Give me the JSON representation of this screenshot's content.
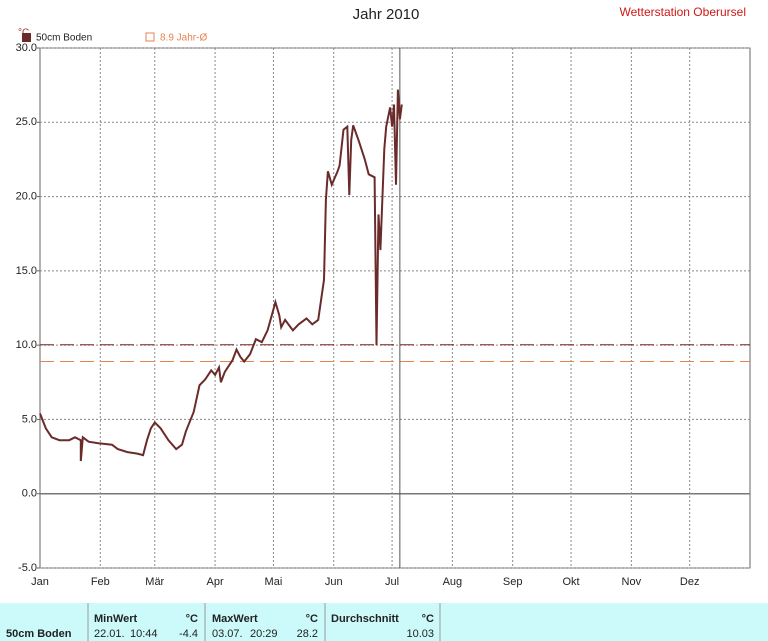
{
  "chart_data": {
    "type": "line",
    "title": "Jahr 2010",
    "subtitle": "Wetterstation Oberursel",
    "y_label": "°C",
    "x": [
      0,
      3,
      6,
      10,
      15,
      18,
      21,
      21,
      22,
      25,
      30,
      37,
      40,
      45,
      50,
      53,
      55,
      57,
      59,
      62,
      66,
      70,
      73,
      75,
      79,
      82,
      85,
      88,
      90,
      92,
      93,
      95,
      99,
      101,
      103,
      105,
      108,
      111,
      114,
      117,
      120,
      121,
      123,
      124,
      126,
      130,
      133,
      137,
      140,
      143,
      146,
      147,
      148,
      150,
      153,
      154,
      156,
      158,
      159,
      160,
      161,
      164,
      167,
      169,
      172,
      173,
      174,
      175,
      177,
      178,
      180,
      181,
      182,
      183,
      184,
      185,
      186
    ],
    "series": [
      {
        "name": "50cm Boden",
        "color": "#6b2b2b",
        "values": [
          5.4,
          4.4,
          3.8,
          3.6,
          3.6,
          3.8,
          3.6,
          2.2,
          3.8,
          3.5,
          3.4,
          3.3,
          3.0,
          2.8,
          2.7,
          2.6,
          3.6,
          4.4,
          4.8,
          4.4,
          3.6,
          3.0,
          3.3,
          4.2,
          5.5,
          7.3,
          7.7,
          8.3,
          8.0,
          8.5,
          7.5,
          8.2,
          9.0,
          9.7,
          9.2,
          8.9,
          9.4,
          10.4,
          10.2,
          11.0,
          12.4,
          12.9,
          12.0,
          11.2,
          11.7,
          11.0,
          11.4,
          11.8,
          11.4,
          11.7,
          14.4,
          19.8,
          21.7,
          20.8,
          21.7,
          22.1,
          24.5,
          24.7,
          20.1,
          23.8,
          24.8,
          23.7,
          22.5,
          21.5,
          21.3,
          10.0,
          18.8,
          16.4,
          23.2,
          24.7,
          26.0,
          24.7,
          26.2,
          20.8,
          27.2,
          25.2,
          26.2
        ]
      }
    ],
    "ref_lines": [
      {
        "name": "8.9 Jahr-Ø",
        "value": 8.9,
        "color": "#e8834f"
      }
    ],
    "marker_x": 185,
    "xlim": [
      0,
      365
    ],
    "xticks": [
      {
        "value": 0,
        "label": "Jan"
      },
      {
        "value": 31,
        "label": "Feb"
      },
      {
        "value": 59,
        "label": "Mär"
      },
      {
        "value": 90,
        "label": "Apr"
      },
      {
        "value": 120,
        "label": "Mai"
      },
      {
        "value": 151,
        "label": "Jun"
      },
      {
        "value": 181,
        "label": "Jul"
      },
      {
        "value": 212,
        "label": "Aug"
      },
      {
        "value": 243,
        "label": "Sep"
      },
      {
        "value": 273,
        "label": "Okt"
      },
      {
        "value": 304,
        "label": "Nov"
      },
      {
        "value": 334,
        "label": "Dez"
      }
    ],
    "ylim": [
      -5,
      30
    ],
    "yticks": [
      {
        "value": -5,
        "label": "-5.0"
      },
      {
        "value": 0,
        "label": "0.0"
      },
      {
        "value": 5,
        "label": "5.0"
      },
      {
        "value": 10,
        "label": "10.0"
      },
      {
        "value": 15,
        "label": "15.0"
      },
      {
        "value": 20,
        "label": "20.0"
      },
      {
        "value": 25,
        "label": "25.0"
      },
      {
        "value": 30,
        "label": "30.0"
      }
    ],
    "grid": true
  },
  "stats": {
    "name": "50cm Boden",
    "min": {
      "label": "MinWert",
      "unit": "°C",
      "date": "22.01.",
      "time": "10:44",
      "value": -4.4
    },
    "max": {
      "label": "MaxWert",
      "unit": "°C",
      "date": "03.07.",
      "time": "20:29",
      "value": 28.2
    },
    "avg": {
      "label": "Durchschnitt",
      "unit": "°C",
      "value": 10.03,
      "color": "#7a2020"
    }
  }
}
